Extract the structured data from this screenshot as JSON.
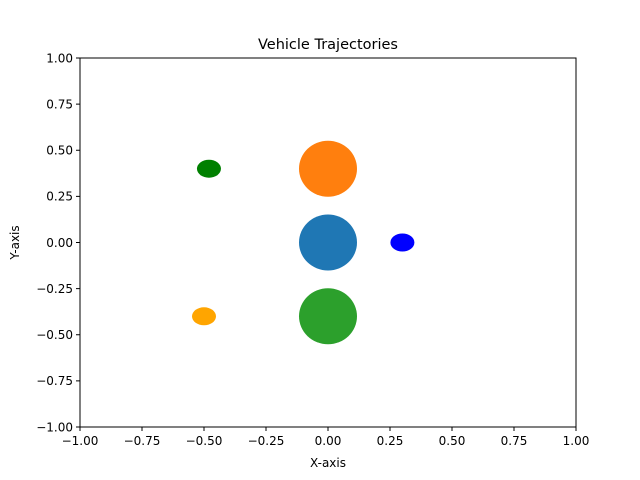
{
  "chart_data": {
    "type": "scatter",
    "title": "Vehicle Trajectories",
    "xlabel": "X-axis",
    "ylabel": "Y-axis",
    "xlim": [
      -1.0,
      1.0
    ],
    "ylim": [
      -1.0,
      1.0
    ],
    "grid": false,
    "legend": "none",
    "x_ticks": [
      "−1.00",
      "−0.75",
      "−0.50",
      "−0.25",
      "0.00",
      "0.25",
      "0.50",
      "0.75",
      "1.00"
    ],
    "y_ticks": [
      "−1.00",
      "−0.75",
      "−0.50",
      "−0.25",
      "0.00",
      "0.25",
      "0.50",
      "0.75",
      "1.00"
    ],
    "points": [
      {
        "x": 0.0,
        "y": 0.0,
        "color": "#1f77b4"
      },
      {
        "x": 0.0,
        "y": 0.4,
        "color": "#ff7f0e"
      },
      {
        "x": 0.0,
        "y": -0.4,
        "color": "#2ca02c"
      },
      {
        "x": 0.3,
        "y": 0.0,
        "color": "#0000ff"
      },
      {
        "x": -0.48,
        "y": 0.4,
        "color": "#008000"
      },
      {
        "x": -0.5,
        "y": -0.4,
        "color": "#ffa500"
      }
    ]
  }
}
